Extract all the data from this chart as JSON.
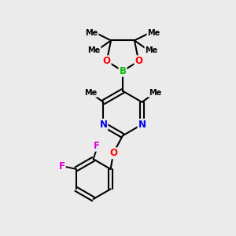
{
  "bg_color": "#ebebeb",
  "bond_color": "#000000",
  "bond_width": 1.5,
  "atom_colors": {
    "B": "#00bb00",
    "O": "#ff0000",
    "N": "#0000ee",
    "F": "#dd00dd",
    "C": "#000000"
  },
  "font_size_atom": 8.5,
  "font_size_methyl": 7.0,
  "figsize": [
    3.0,
    3.0
  ],
  "dpi": 100,
  "xlim": [
    0,
    10
  ],
  "ylim": [
    0,
    10
  ]
}
